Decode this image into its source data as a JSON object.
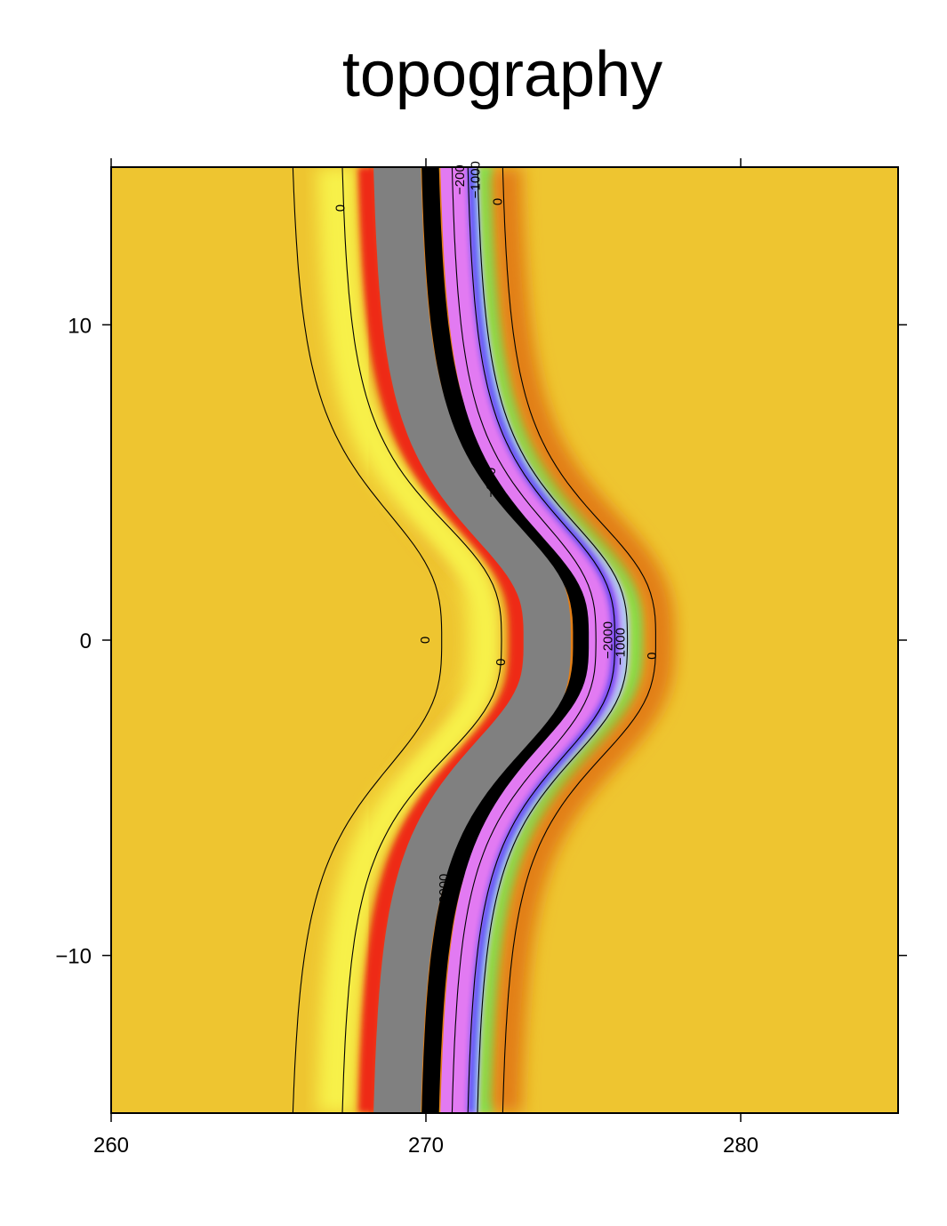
{
  "chart_data": {
    "type": "heatmap",
    "title": "topography",
    "xlabel": "",
    "ylabel": "",
    "xlim": [
      260,
      285
    ],
    "ylim": [
      -15,
      15
    ],
    "x_ticks": [
      "260",
      "270",
      "280"
    ],
    "x_tick_values": [
      260,
      270,
      280
    ],
    "y_ticks": [
      "10",
      "0",
      "−10"
    ],
    "y_tick_values": [
      10,
      0,
      -10
    ],
    "grid": false,
    "legend": false,
    "colormap": {
      "land": "#EEC530",
      "highland": "#F7F148",
      "coast": "#EE2A16",
      "shelf_gray": "#808080",
      "trench": "#000000",
      "deep_magenta": "#E27AF2",
      "blue": "#1E2CF5",
      "light_blue": "#B0C8F8",
      "green": "#74F058",
      "orange_low": "#E27E18"
    },
    "contours": [
      {
        "level": 0,
        "x_far": 265.6,
        "x_mid": 270.5,
        "amplitude": 4.9,
        "y_width": 5.0
      },
      {
        "level": 0,
        "x_far": 267.2,
        "x_mid": 272.4,
        "amplitude": 5.2,
        "y_width": 4.6
      },
      {
        "level": -3000,
        "x_far": 270.7,
        "x_mid": 275.4,
        "amplitude": 4.7,
        "y_width": 4.6
      },
      {
        "level": -2000,
        "x_far": 271.2,
        "x_mid": 276.0,
        "amplitude": 4.8,
        "y_width": 4.6
      },
      {
        "level": -1000,
        "x_far": 271.5,
        "x_mid": 276.4,
        "amplitude": 4.9,
        "y_width": 4.6
      },
      {
        "level": 0,
        "x_far": 272.3,
        "x_mid": 277.3,
        "amplitude": 5.0,
        "y_width": 4.6
      }
    ],
    "contour_labels": [
      {
        "text": "0",
        "x": 267.3,
        "y": 13.7
      },
      {
        "text": "0",
        "x": 272.3,
        "y": 13.9
      },
      {
        "text": "−200",
        "x": 271.1,
        "y": 14.6
      },
      {
        "text": "−1000",
        "x": 271.6,
        "y": 14.6
      },
      {
        "text": "−300",
        "x": 272.1,
        "y": 5.0
      },
      {
        "text": "0",
        "x": 270.0,
        "y": 0.0
      },
      {
        "text": "0",
        "x": 272.4,
        "y": -0.7
      },
      {
        "text": "−2000",
        "x": 275.8,
        "y": 0.0
      },
      {
        "text": "−1000",
        "x": 276.2,
        "y": -0.2
      },
      {
        "text": "0",
        "x": 277.2,
        "y": -0.5
      },
      {
        "text": "−3000",
        "x": 270.6,
        "y": -8.0
      }
    ]
  }
}
